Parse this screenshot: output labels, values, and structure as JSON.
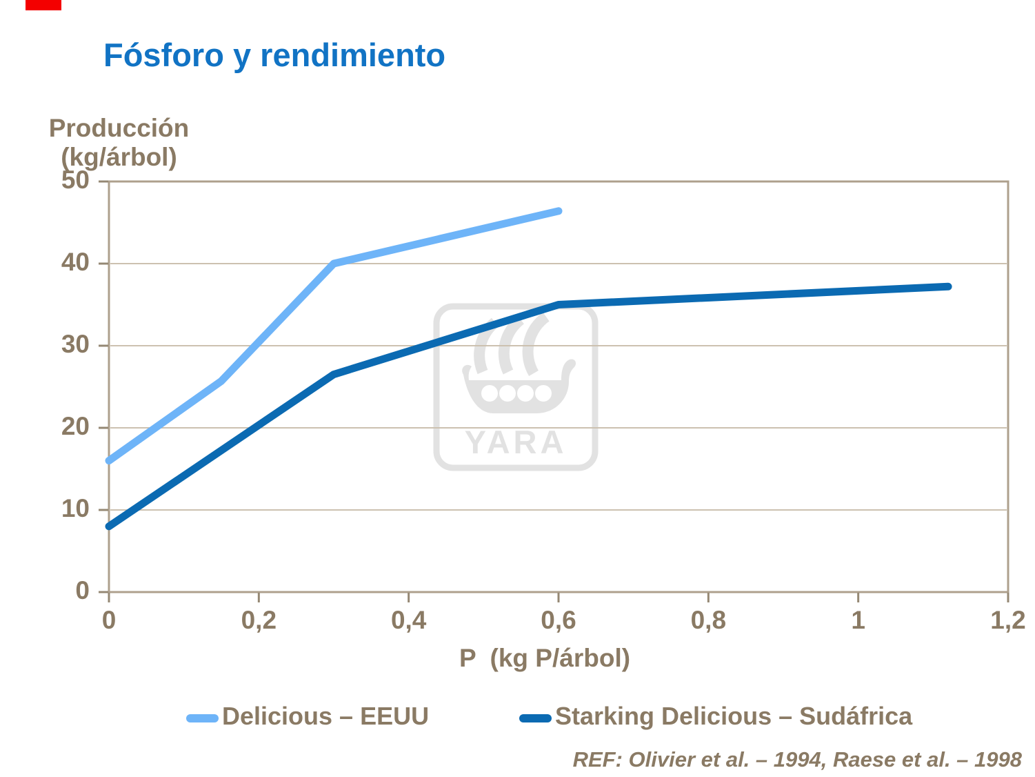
{
  "slide": {
    "title": "Fósforo y rendimiento",
    "reference": "REF: Olivier et al. – 1994, Raese et al. – 1998",
    "watermark_text": "YARA"
  },
  "colors": {
    "accent_red": "#F40000",
    "title_blue": "#1173C4",
    "text_brown": "#8A7A64",
    "axis_frame": "#AEA08D",
    "gridline": "#CCC1B0",
    "tick": "#958874",
    "watermark_gray": "#E2E2E2",
    "series_light_blue": "#6EB4F8",
    "series_dark_blue": "#0B6AB2"
  },
  "chart_data": {
    "type": "line",
    "title": "Fósforo y rendimiento",
    "xlabel": "P  (kg P/árbol)",
    "ylabel_lines": [
      "Producción",
      "(kg/árbol)"
    ],
    "xlim": [
      0,
      1.2
    ],
    "ylim": [
      0,
      50
    ],
    "grid": "horizontal gridlines at every 10, full frame around plot",
    "legend_position": "bottom",
    "x_ticks": {
      "values": [
        0,
        0.2,
        0.4,
        0.6,
        0.8,
        1.0,
        1.2
      ],
      "labels": [
        "0",
        "0,2",
        "0,4",
        "0,6",
        "0,8",
        "1",
        "1,2"
      ]
    },
    "y_ticks": {
      "values": [
        0,
        10,
        20,
        30,
        40,
        50
      ],
      "labels": [
        "0",
        "10",
        "20",
        "30",
        "40",
        "50"
      ]
    },
    "series": [
      {
        "name": "Delicious – EEUU",
        "color": "#6EB4F8",
        "points": [
          [
            0,
            16
          ],
          [
            0.15,
            25.7
          ],
          [
            0.3,
            40
          ],
          [
            0.6,
            46.4
          ]
        ]
      },
      {
        "name": "Starking Delicious – Sudáfrica",
        "color": "#0B6AB2",
        "points": [
          [
            0,
            8
          ],
          [
            0.3,
            26.5
          ],
          [
            0.6,
            35
          ],
          [
            1.12,
            37.2
          ]
        ]
      }
    ]
  }
}
